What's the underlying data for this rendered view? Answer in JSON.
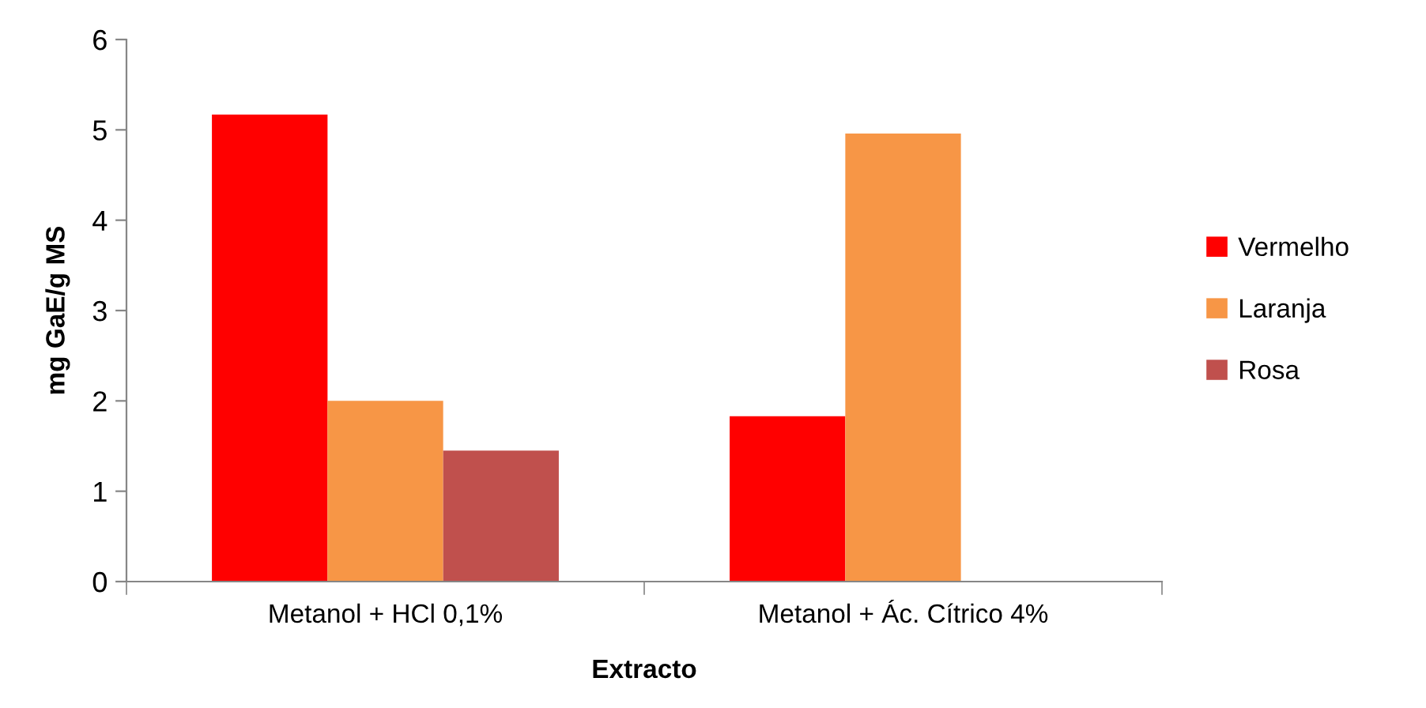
{
  "chart_data": {
    "type": "bar",
    "xlabel": "Extracto",
    "ylabel": "mg GaE/g MS",
    "categories": [
      "Metanol + HCl 0,1%",
      "Metanol + Ác. Cítrico 4%"
    ],
    "series": [
      {
        "name": "Vermelho",
        "color": "#ff0000",
        "values": [
          5.17,
          1.83
        ]
      },
      {
        "name": "Laranja",
        "color": "#f79646",
        "values": [
          2.0,
          4.96
        ]
      },
      {
        "name": "Rosa",
        "color": "#c0504d",
        "values": [
          1.45,
          null
        ]
      }
    ],
    "ylim": [
      0,
      6
    ],
    "yticks": [
      0,
      1,
      2,
      3,
      4,
      5,
      6
    ],
    "grid": false,
    "legend": "right"
  }
}
